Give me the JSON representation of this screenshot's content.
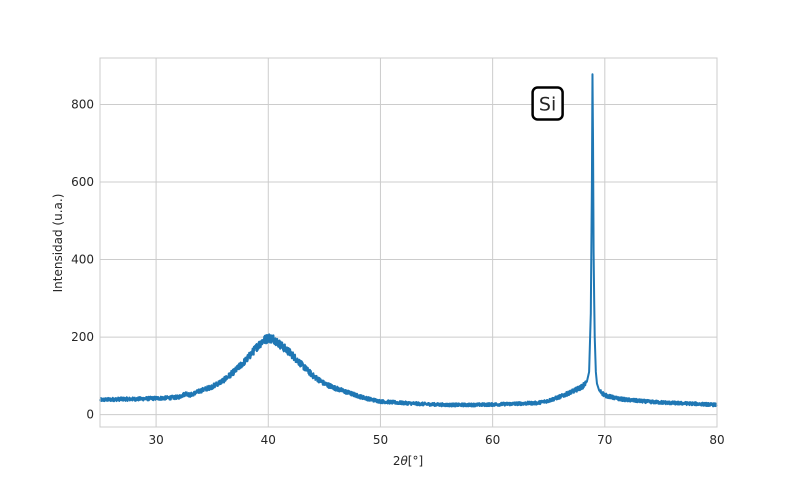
{
  "chart_data": {
    "type": "line",
    "title": "",
    "xlabel_prefix": "2",
    "xlabel_symbol": "θ",
    "xlabel_suffix": "[°]",
    "ylabel": "Intensidad (u.a.)",
    "xlim": [
      25,
      80
    ],
    "ylim": [
      -32,
      920
    ],
    "xticks": [
      30,
      40,
      50,
      60,
      70,
      80
    ],
    "yticks": [
      0,
      200,
      400,
      600,
      800
    ],
    "grid": true,
    "line_color": "#1f77b4",
    "annotations": [
      {
        "text": "Si",
        "x": 64.9,
        "y": 800
      }
    ],
    "series": [
      {
        "x": [
          25,
          26,
          27,
          28,
          29,
          30,
          31,
          32,
          32.7,
          33,
          34,
          35,
          36,
          37,
          38,
          39,
          39.5,
          40,
          40.5,
          41,
          42,
          43,
          44,
          45,
          46,
          47,
          48,
          49,
          50,
          52,
          54,
          56,
          58,
          60,
          62,
          64,
          65,
          66,
          67,
          68,
          68.4,
          68.6,
          68.75,
          68.85,
          68.9,
          68.95,
          69.0,
          69.05,
          69.1,
          69.2,
          69.3,
          69.5,
          70,
          71,
          72,
          74,
          76,
          78,
          80
        ],
        "y": [
          38,
          39,
          40,
          40,
          41,
          42,
          43,
          45,
          55,
          50,
          62,
          72,
          88,
          112,
          140,
          175,
          190,
          198,
          195,
          182,
          158,
          128,
          100,
          80,
          68,
          58,
          48,
          40,
          34,
          30,
          27,
          25,
          25,
          26,
          28,
          30,
          36,
          46,
          58,
          72,
          85,
          110,
          260,
          600,
          878,
          700,
          420,
          300,
          200,
          110,
          80,
          62,
          50,
          42,
          38,
          33,
          30,
          28,
          25
        ]
      }
    ]
  }
}
